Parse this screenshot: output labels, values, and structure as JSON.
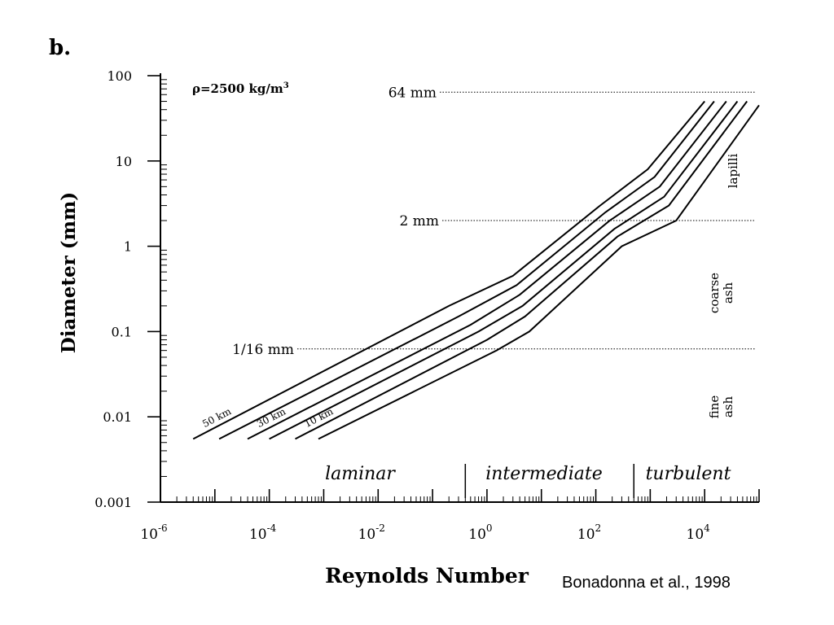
{
  "panel_label": "b.",
  "citation": "Bonadonna et al., 1998",
  "annotations": {
    "density": "ρ=2500 kg/m",
    "density_exp": "3"
  },
  "colors": {
    "ink": "#000000",
    "background": "#ffffff"
  },
  "chart_data": {
    "type": "line",
    "title": "",
    "xlabel": "Reynolds Number",
    "ylabel": "Diameter (mm)",
    "x_scale": "log",
    "y_scale": "log",
    "xlim": [
      1e-06,
      100000
    ],
    "ylim": [
      0.001,
      100
    ],
    "x_ticks": [
      {
        "base": "10",
        "exp": "-6",
        "value": 1e-06
      },
      {
        "base": "10",
        "exp": "-4",
        "value": 0.0001
      },
      {
        "base": "10",
        "exp": "-2",
        "value": 0.01
      },
      {
        "base": "10",
        "exp": "0",
        "value": 1
      },
      {
        "base": "10",
        "exp": "2",
        "value": 100
      },
      {
        "base": "10",
        "exp": "4",
        "value": 10000
      }
    ],
    "y_ticks": [
      {
        "label": "100",
        "value": 100
      },
      {
        "label": "10",
        "value": 10
      },
      {
        "label": "1",
        "value": 1
      },
      {
        "label": "0.1",
        "value": 0.1
      },
      {
        "label": "0.01",
        "value": 0.01
      },
      {
        "label": "0.001",
        "value": 0.001
      }
    ],
    "grid": false,
    "series": [
      {
        "name": "50 km",
        "label_pos": "start",
        "points": [
          [
            4e-06,
            0.0055
          ],
          [
            0.2,
            0.2
          ],
          [
            3,
            0.45
          ],
          [
            120,
            3
          ],
          [
            900,
            8
          ],
          [
            10000,
            50
          ]
        ]
      },
      {
        "name": "",
        "label_pos": "",
        "points": [
          [
            1.2e-05,
            0.0055
          ],
          [
            0.3,
            0.15
          ],
          [
            3.5,
            0.35
          ],
          [
            150,
            2.5
          ],
          [
            1200,
            6.5
          ],
          [
            15000,
            50
          ]
        ]
      },
      {
        "name": "30 km",
        "label_pos": "start",
        "points": [
          [
            4e-05,
            0.0055
          ],
          [
            0.5,
            0.12
          ],
          [
            4,
            0.27
          ],
          [
            180,
            2
          ],
          [
            1500,
            5
          ],
          [
            25000,
            50
          ]
        ]
      },
      {
        "name": "",
        "label_pos": "",
        "points": [
          [
            0.0001,
            0.0055
          ],
          [
            0.7,
            0.1
          ],
          [
            4.5,
            0.2
          ],
          [
            220,
            1.6
          ],
          [
            1800,
            3.8
          ],
          [
            40000,
            50
          ]
        ]
      },
      {
        "name": "10 km",
        "label_pos": "start",
        "points": [
          [
            0.0003,
            0.0055
          ],
          [
            1,
            0.08
          ],
          [
            5,
            0.15
          ],
          [
            250,
            1.3
          ],
          [
            2200,
            3
          ],
          [
            60000,
            50
          ]
        ]
      },
      {
        "name": "",
        "label_pos": "",
        "points": [
          [
            0.0008,
            0.0055
          ],
          [
            1.5,
            0.06
          ],
          [
            6,
            0.1
          ],
          [
            300,
            1
          ],
          [
            3000,
            2
          ],
          [
            100000,
            45
          ]
        ]
      }
    ],
    "reference_lines": [
      {
        "label": "64 mm",
        "value": 64
      },
      {
        "label": "2 mm",
        "value": 2
      },
      {
        "label": "1/16 mm",
        "value": 0.0625
      }
    ],
    "regimes": [
      {
        "label": "laminar",
        "from": 1e-06,
        "to": 0.4
      },
      {
        "label": "intermediate",
        "from": 0.4,
        "to": 500
      },
      {
        "label": "turbulent",
        "from": 500,
        "to": 100000
      }
    ],
    "size_classes": [
      {
        "label": "lapilli"
      },
      {
        "label": "coarse ash",
        "lines": [
          "coarse",
          "ash"
        ]
      },
      {
        "label": "fine ash",
        "lines": [
          "fine",
          "ash"
        ]
      }
    ]
  }
}
